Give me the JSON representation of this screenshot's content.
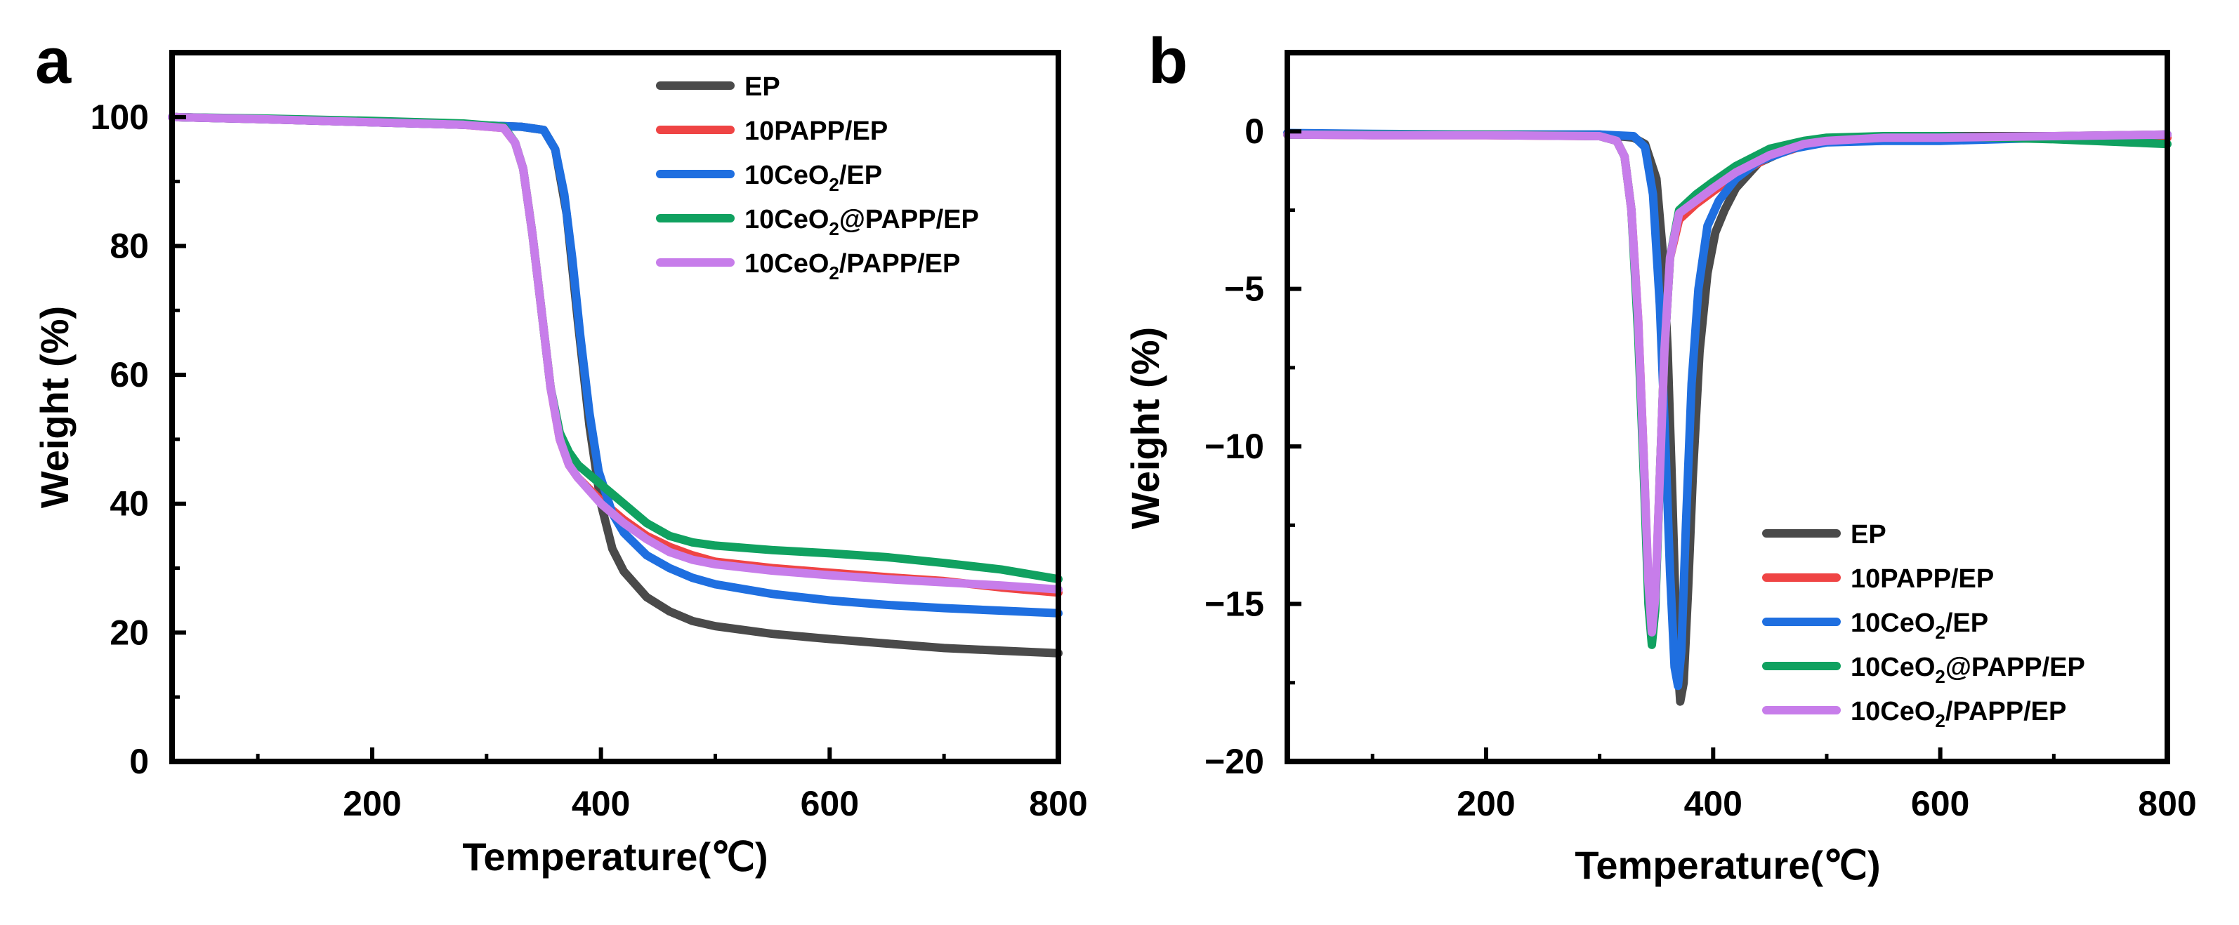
{
  "chart_data": [
    {
      "type": "line",
      "panel": "a",
      "xlabel": "Temperature(℃)",
      "ylabel": "Weight (%)",
      "xlim": [
        25,
        800
      ],
      "ylim": [
        0,
        110
      ],
      "xticks": [
        200,
        400,
        600,
        800
      ],
      "yticks": [
        0,
        20,
        40,
        60,
        80,
        100
      ],
      "legend_position": "top-right",
      "series": [
        {
          "name": "EP",
          "label_parts": [
            "EP"
          ],
          "color": "#4a4a4a",
          "points": [
            [
              25,
              100
            ],
            [
              100,
              99.7
            ],
            [
              200,
              99.2
            ],
            [
              280,
              98.8
            ],
            [
              330,
              98.5
            ],
            [
              350,
              98
            ],
            [
              360,
              95
            ],
            [
              370,
              85
            ],
            [
              380,
              68
            ],
            [
              390,
              52
            ],
            [
              400,
              40
            ],
            [
              410,
              33
            ],
            [
              420,
              29.5
            ],
            [
              440,
              25.5
            ],
            [
              460,
              23.3
            ],
            [
              480,
              21.8
            ],
            [
              500,
              21
            ],
            [
              550,
              19.8
            ],
            [
              600,
              19
            ],
            [
              650,
              18.3
            ],
            [
              700,
              17.6
            ],
            [
              750,
              17.2
            ],
            [
              800,
              16.8
            ]
          ]
        },
        {
          "name": "10PAPP/EP",
          "label_parts": [
            "10PAPP/EP"
          ],
          "color": "#ef4444",
          "points": [
            [
              25,
              100
            ],
            [
              100,
              99.7
            ],
            [
              200,
              99.2
            ],
            [
              280,
              98.8
            ],
            [
              315,
              98.3
            ],
            [
              325,
              96
            ],
            [
              332,
              92
            ],
            [
              340,
              82
            ],
            [
              348,
              70
            ],
            [
              356,
              58
            ],
            [
              364,
              50
            ],
            [
              372,
              46
            ],
            [
              380,
              44
            ],
            [
              400,
              40.5
            ],
            [
              420,
              37.5
            ],
            [
              440,
              35
            ],
            [
              460,
              33.3
            ],
            [
              480,
              32
            ],
            [
              500,
              31
            ],
            [
              550,
              30
            ],
            [
              600,
              29.3
            ],
            [
              650,
              28.6
            ],
            [
              700,
              28
            ],
            [
              750,
              27
            ],
            [
              800,
              26.2
            ]
          ]
        },
        {
          "name": "10CeO2/EP",
          "label_parts": [
            "10CeO",
            "2",
            "/EP"
          ],
          "color": "#1f6fe0",
          "points": [
            [
              25,
              100
            ],
            [
              100,
              99.7
            ],
            [
              200,
              99.2
            ],
            [
              280,
              98.8
            ],
            [
              330,
              98.5
            ],
            [
              350,
              98
            ],
            [
              360,
              95
            ],
            [
              368,
              88
            ],
            [
              375,
              78
            ],
            [
              382,
              66
            ],
            [
              390,
              54
            ],
            [
              398,
              45
            ],
            [
              410,
              38.5
            ],
            [
              420,
              35.5
            ],
            [
              440,
              32
            ],
            [
              460,
              30
            ],
            [
              480,
              28.5
            ],
            [
              500,
              27.5
            ],
            [
              550,
              26
            ],
            [
              600,
              25
            ],
            [
              650,
              24.3
            ],
            [
              700,
              23.8
            ],
            [
              750,
              23.4
            ],
            [
              800,
              23
            ]
          ]
        },
        {
          "name": "10CeO2@PAPP/EP",
          "label_parts": [
            "10CeO",
            "2",
            "@PAPP/EP"
          ],
          "color": "#10a160",
          "points": [
            [
              25,
              100
            ],
            [
              100,
              99.8
            ],
            [
              200,
              99.4
            ],
            [
              280,
              99
            ],
            [
              315,
              98.5
            ],
            [
              325,
              96
            ],
            [
              332,
              92
            ],
            [
              340,
              82
            ],
            [
              348,
              70
            ],
            [
              356,
              58
            ],
            [
              364,
              51
            ],
            [
              372,
              48
            ],
            [
              380,
              46
            ],
            [
              400,
              43
            ],
            [
              420,
              40
            ],
            [
              440,
              37
            ],
            [
              460,
              35
            ],
            [
              480,
              34
            ],
            [
              500,
              33.5
            ],
            [
              550,
              32.8
            ],
            [
              600,
              32.3
            ],
            [
              650,
              31.7
            ],
            [
              700,
              30.8
            ],
            [
              750,
              29.8
            ],
            [
              800,
              28.3
            ]
          ]
        },
        {
          "name": "10CeO2/PAPP/EP",
          "label_parts": [
            "10CeO",
            "2",
            "/PAPP/EP"
          ],
          "color": "#c77dea",
          "points": [
            [
              25,
              100
            ],
            [
              100,
              99.7
            ],
            [
              200,
              99.2
            ],
            [
              280,
              98.8
            ],
            [
              315,
              98.3
            ],
            [
              325,
              96
            ],
            [
              332,
              92
            ],
            [
              340,
              82
            ],
            [
              348,
              70
            ],
            [
              356,
              58
            ],
            [
              364,
              50
            ],
            [
              372,
              46
            ],
            [
              380,
              44
            ],
            [
              400,
              40
            ],
            [
              420,
              37
            ],
            [
              440,
              34.5
            ],
            [
              460,
              32.5
            ],
            [
              480,
              31.3
            ],
            [
              500,
              30.6
            ],
            [
              550,
              29.6
            ],
            [
              600,
              28.9
            ],
            [
              650,
              28.3
            ],
            [
              700,
              27.8
            ],
            [
              750,
              27.3
            ],
            [
              800,
              26.7
            ]
          ]
        }
      ]
    },
    {
      "type": "line",
      "panel": "b",
      "xlabel": "Temperature(℃)",
      "ylabel": "Weight (%)",
      "xlim": [
        25,
        800
      ],
      "ylim": [
        -20,
        2.5
      ],
      "xticks": [
        200,
        400,
        600,
        800
      ],
      "yticks": [
        -20,
        -15,
        -10,
        -5,
        0
      ],
      "ytick_labels": [
        "−20",
        "−15",
        "−10",
        "−5",
        "0"
      ],
      "legend_position": "bottom-right",
      "series": [
        {
          "name": "EP",
          "label_parts": [
            "EP"
          ],
          "color": "#4a4a4a",
          "points": [
            [
              25,
              -0.08
            ],
            [
              100,
              -0.1
            ],
            [
              200,
              -0.1
            ],
            [
              300,
              -0.1
            ],
            [
              330,
              -0.2
            ],
            [
              340,
              -0.4
            ],
            [
              350,
              -1.5
            ],
            [
              356,
              -4
            ],
            [
              360,
              -7
            ],
            [
              364,
              -11.5
            ],
            [
              368,
              -16.5
            ],
            [
              371,
              -18.1
            ],
            [
              374,
              -17.5
            ],
            [
              378,
              -14.5
            ],
            [
              382,
              -11
            ],
            [
              388,
              -7
            ],
            [
              395,
              -4.5
            ],
            [
              402,
              -3.2
            ],
            [
              410,
              -2.5
            ],
            [
              420,
              -1.8
            ],
            [
              440,
              -1.0
            ],
            [
              470,
              -0.5
            ],
            [
              500,
              -0.3
            ],
            [
              550,
              -0.2
            ],
            [
              600,
              -0.15
            ],
            [
              700,
              -0.15
            ],
            [
              800,
              -0.1
            ]
          ]
        },
        {
          "name": "10PAPP/EP",
          "label_parts": [
            "10PAPP/EP"
          ],
          "color": "#ef4444",
          "points": [
            [
              25,
              -0.1
            ],
            [
              100,
              -0.12
            ],
            [
              200,
              -0.12
            ],
            [
              300,
              -0.15
            ],
            [
              315,
              -0.3
            ],
            [
              322,
              -0.8
            ],
            [
              328,
              -2.5
            ],
            [
              334,
              -6
            ],
            [
              339,
              -10.5
            ],
            [
              343,
              -14.5
            ],
            [
              346,
              -16
            ],
            [
              349,
              -15
            ],
            [
              353,
              -11
            ],
            [
              357,
              -7
            ],
            [
              362,
              -4
            ],
            [
              370,
              -2.8
            ],
            [
              385,
              -2.3
            ],
            [
              400,
              -1.9
            ],
            [
              420,
              -1.4
            ],
            [
              450,
              -0.8
            ],
            [
              480,
              -0.45
            ],
            [
              500,
              -0.3
            ],
            [
              550,
              -0.2
            ],
            [
              600,
              -0.2
            ],
            [
              700,
              -0.18
            ],
            [
              800,
              -0.2
            ]
          ]
        },
        {
          "name": "10CeO2/EP",
          "label_parts": [
            "10CeO",
            "2",
            "/EP"
          ],
          "color": "#1f6fe0",
          "points": [
            [
              25,
              -0.05
            ],
            [
              100,
              -0.08
            ],
            [
              200,
              -0.1
            ],
            [
              300,
              -0.1
            ],
            [
              330,
              -0.15
            ],
            [
              340,
              -0.5
            ],
            [
              347,
              -2
            ],
            [
              353,
              -5.5
            ],
            [
              358,
              -10
            ],
            [
              362,
              -14
            ],
            [
              366,
              -17
            ],
            [
              369,
              -17.6
            ],
            [
              372,
              -16.5
            ],
            [
              376,
              -12.5
            ],
            [
              381,
              -8
            ],
            [
              387,
              -5
            ],
            [
              395,
              -3
            ],
            [
              405,
              -2.2
            ],
            [
              420,
              -1.5
            ],
            [
              440,
              -0.95
            ],
            [
              470,
              -0.55
            ],
            [
              500,
              -0.35
            ],
            [
              550,
              -0.3
            ],
            [
              600,
              -0.3
            ],
            [
              700,
              -0.2
            ],
            [
              800,
              -0.1
            ]
          ]
        },
        {
          "name": "10CeO2@PAPP/EP",
          "label_parts": [
            "10CeO",
            "2",
            "@PAPP/EP"
          ],
          "color": "#10a160",
          "points": [
            [
              25,
              -0.1
            ],
            [
              100,
              -0.1
            ],
            [
              200,
              -0.1
            ],
            [
              300,
              -0.15
            ],
            [
              315,
              -0.3
            ],
            [
              322,
              -0.8
            ],
            [
              328,
              -2.5
            ],
            [
              334,
              -6.5
            ],
            [
              339,
              -11
            ],
            [
              343,
              -15
            ],
            [
              346,
              -16.3
            ],
            [
              349,
              -15.2
            ],
            [
              353,
              -11
            ],
            [
              357,
              -7
            ],
            [
              362,
              -4
            ],
            [
              370,
              -2.5
            ],
            [
              385,
              -2
            ],
            [
              400,
              -1.6
            ],
            [
              420,
              -1.1
            ],
            [
              450,
              -0.55
            ],
            [
              480,
              -0.3
            ],
            [
              500,
              -0.2
            ],
            [
              550,
              -0.15
            ],
            [
              600,
              -0.15
            ],
            [
              700,
              -0.25
            ],
            [
              800,
              -0.4
            ]
          ]
        },
        {
          "name": "10CeO2/PAPP/EP",
          "label_parts": [
            "10CeO",
            "2",
            "/PAPP/EP"
          ],
          "color": "#c77dea",
          "points": [
            [
              25,
              -0.1
            ],
            [
              100,
              -0.12
            ],
            [
              200,
              -0.12
            ],
            [
              300,
              -0.15
            ],
            [
              315,
              -0.3
            ],
            [
              322,
              -0.8
            ],
            [
              328,
              -2.5
            ],
            [
              334,
              -6
            ],
            [
              339,
              -10.5
            ],
            [
              343,
              -14.3
            ],
            [
              346,
              -15.9
            ],
            [
              349,
              -14.8
            ],
            [
              353,
              -11
            ],
            [
              357,
              -7
            ],
            [
              362,
              -4
            ],
            [
              370,
              -2.6
            ],
            [
              385,
              -2.2
            ],
            [
              400,
              -1.8
            ],
            [
              420,
              -1.3
            ],
            [
              450,
              -0.75
            ],
            [
              480,
              -0.4
            ],
            [
              500,
              -0.3
            ],
            [
              550,
              -0.2
            ],
            [
              600,
              -0.2
            ],
            [
              700,
              -0.15
            ],
            [
              800,
              -0.1
            ]
          ]
        }
      ]
    }
  ]
}
